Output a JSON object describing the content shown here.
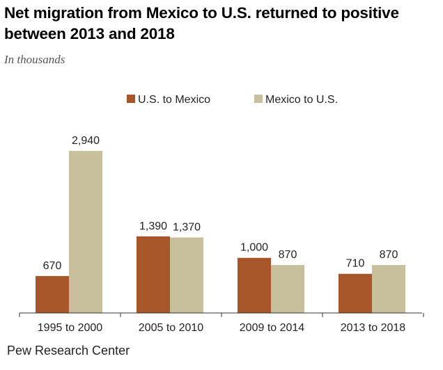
{
  "title": "Net migration from Mexico to U.S. returned to positive between 2013 and 2018",
  "subtitle": "In thousands",
  "source": "Pew Research Center",
  "colors": {
    "us_to_mexico": "#a65628",
    "mexico_to_us": "#c8bf9c",
    "axis": "#333333"
  },
  "chart_data": {
    "type": "bar",
    "categories": [
      "1995 to 2000",
      "2005 to 2010",
      "2009 to 2014",
      "2013 to 2018"
    ],
    "series": [
      {
        "name": "U.S. to Mexico",
        "values": [
          670,
          1390,
          1000,
          710
        ],
        "labels": [
          "670",
          "1,390",
          "1,000",
          "710"
        ]
      },
      {
        "name": "Mexico to U.S.",
        "values": [
          2940,
          1370,
          870,
          870
        ],
        "labels": [
          "2,940",
          "1,370",
          "870",
          "870"
        ]
      }
    ],
    "ylim": [
      0,
      2940
    ],
    "grid": false,
    "legend_position": "top"
  }
}
